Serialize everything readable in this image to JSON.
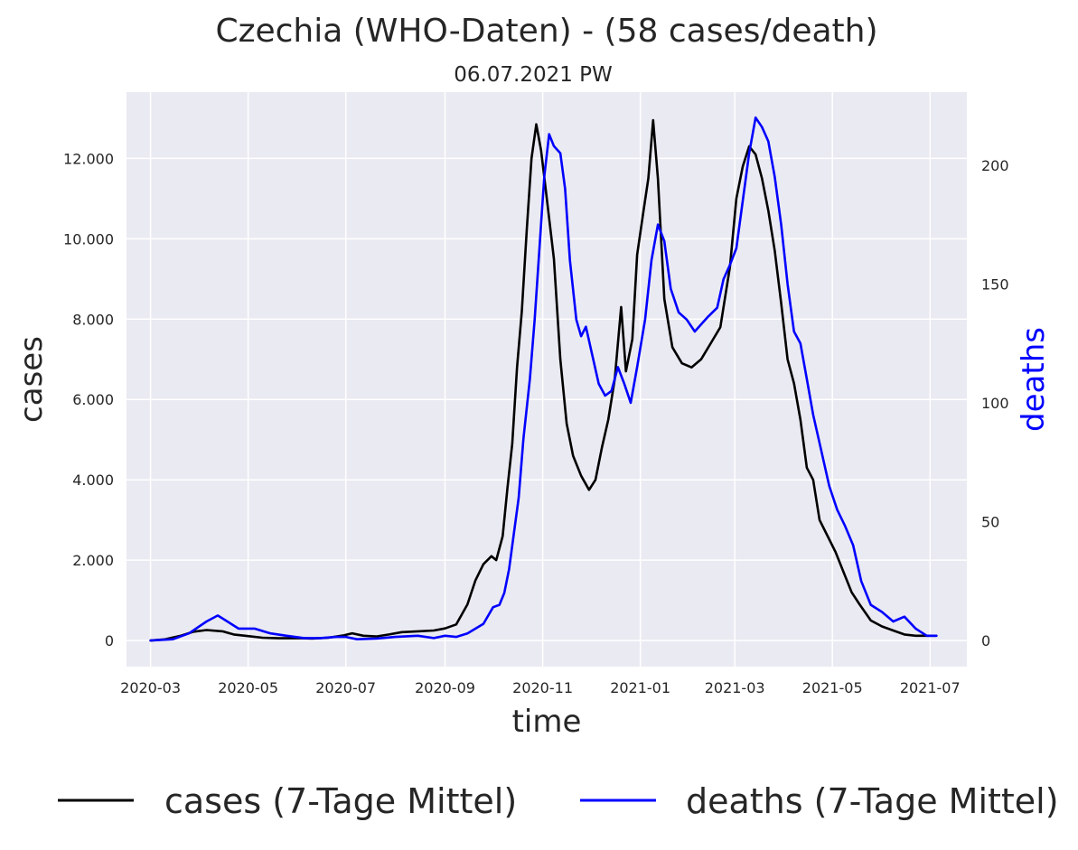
{
  "chart_data": {
    "type": "line",
    "title": "Czechia (WHO-Daten) - (58 cases/death)",
    "subtitle": "06.07.2021 PW",
    "xlabel": "time",
    "ylabel": "cases",
    "y2label": "deaths",
    "x_ticks": [
      "2020-03",
      "2020-05",
      "2020-07",
      "2020-09",
      "2020-11",
      "2021-01",
      "2021-03",
      "2021-05",
      "2021-07"
    ],
    "y_ticks": [
      0,
      2000,
      4000,
      6000,
      8000,
      10000,
      12000
    ],
    "y_tick_labels": [
      "0",
      "2.000",
      "4.000",
      "6.000",
      "8.000",
      "10.000",
      "12.000"
    ],
    "y2_ticks": [
      0,
      50,
      100,
      150,
      200
    ],
    "y2_tick_labels": [
      "0",
      "50",
      "100",
      "150",
      "200"
    ],
    "xlim": [
      "2020-02-15",
      "2021-07-24"
    ],
    "ylim": [
      -650,
      13650
    ],
    "y2lim": [
      -11,
      230.7
    ],
    "grid": true,
    "legend_position": "bottom",
    "series": [
      {
        "name": "cases (7-Tage Mittel)",
        "axis": "left",
        "color": "#000000",
        "points": [
          [
            "2020-03-01",
            0
          ],
          [
            "2020-03-10",
            30
          ],
          [
            "2020-03-20",
            120
          ],
          [
            "2020-03-28",
            220
          ],
          [
            "2020-04-05",
            260
          ],
          [
            "2020-04-15",
            230
          ],
          [
            "2020-04-22",
            150
          ],
          [
            "2020-05-01",
            110
          ],
          [
            "2020-05-10",
            70
          ],
          [
            "2020-05-20",
            55
          ],
          [
            "2020-06-01",
            60
          ],
          [
            "2020-06-10",
            50
          ],
          [
            "2020-06-20",
            70
          ],
          [
            "2020-06-30",
            130
          ],
          [
            "2020-07-05",
            180
          ],
          [
            "2020-07-12",
            120
          ],
          [
            "2020-07-20",
            100
          ],
          [
            "2020-07-28",
            150
          ],
          [
            "2020-08-05",
            210
          ],
          [
            "2020-08-15",
            230
          ],
          [
            "2020-08-25",
            250
          ],
          [
            "2020-09-01",
            300
          ],
          [
            "2020-09-08",
            400
          ],
          [
            "2020-09-15",
            900
          ],
          [
            "2020-09-20",
            1500
          ],
          [
            "2020-09-25",
            1900
          ],
          [
            "2020-09-30",
            2100
          ],
          [
            "2020-10-03",
            2000
          ],
          [
            "2020-10-07",
            2600
          ],
          [
            "2020-10-10",
            3800
          ],
          [
            "2020-10-13",
            4900
          ],
          [
            "2020-10-16",
            6800
          ],
          [
            "2020-10-19",
            8200
          ],
          [
            "2020-10-22",
            10200
          ],
          [
            "2020-10-25",
            12000
          ],
          [
            "2020-10-28",
            12850
          ],
          [
            "2020-10-31",
            12200
          ],
          [
            "2020-11-03",
            11200
          ],
          [
            "2020-11-08",
            9500
          ],
          [
            "2020-11-12",
            7000
          ],
          [
            "2020-11-16",
            5400
          ],
          [
            "2020-11-20",
            4600
          ],
          [
            "2020-11-25",
            4100
          ],
          [
            "2020-11-30",
            3750
          ],
          [
            "2020-12-04",
            4000
          ],
          [
            "2020-12-08",
            4800
          ],
          [
            "2020-12-12",
            5500
          ],
          [
            "2020-12-16",
            6500
          ],
          [
            "2020-12-20",
            8300
          ],
          [
            "2020-12-23",
            6700
          ],
          [
            "2020-12-27",
            7500
          ],
          [
            "2020-12-30",
            9600
          ],
          [
            "2021-01-03",
            10700
          ],
          [
            "2021-01-06",
            11500
          ],
          [
            "2021-01-09",
            12950
          ],
          [
            "2021-01-12",
            11500
          ],
          [
            "2021-01-16",
            8500
          ],
          [
            "2021-01-21",
            7300
          ],
          [
            "2021-01-27",
            6900
          ],
          [
            "2021-02-02",
            6800
          ],
          [
            "2021-02-08",
            7000
          ],
          [
            "2021-02-14",
            7400
          ],
          [
            "2021-02-20",
            7800
          ],
          [
            "2021-02-26",
            9300
          ],
          [
            "2021-03-02",
            11000
          ],
          [
            "2021-03-06",
            11800
          ],
          [
            "2021-03-10",
            12300
          ],
          [
            "2021-03-14",
            12100
          ],
          [
            "2021-03-18",
            11500
          ],
          [
            "2021-03-22",
            10700
          ],
          [
            "2021-03-26",
            9700
          ],
          [
            "2021-03-30",
            8400
          ],
          [
            "2021-04-03",
            7000
          ],
          [
            "2021-04-07",
            6400
          ],
          [
            "2021-04-11",
            5500
          ],
          [
            "2021-04-15",
            4300
          ],
          [
            "2021-04-19",
            4000
          ],
          [
            "2021-04-23",
            3000
          ],
          [
            "2021-04-28",
            2600
          ],
          [
            "2021-05-03",
            2200
          ],
          [
            "2021-05-08",
            1700
          ],
          [
            "2021-05-13",
            1200
          ],
          [
            "2021-05-18",
            900
          ],
          [
            "2021-05-25",
            500
          ],
          [
            "2021-06-01",
            350
          ],
          [
            "2021-06-08",
            250
          ],
          [
            "2021-06-15",
            150
          ],
          [
            "2021-06-22",
            120
          ],
          [
            "2021-06-29",
            120
          ],
          [
            "2021-07-05",
            120
          ]
        ]
      },
      {
        "name": "deaths (7-Tage Mittel)",
        "axis": "right",
        "color": "#0000ff",
        "points": [
          [
            "2020-03-01",
            0
          ],
          [
            "2020-03-15",
            0.5
          ],
          [
            "2020-03-25",
            3
          ],
          [
            "2020-04-05",
            8
          ],
          [
            "2020-04-12",
            10.5
          ],
          [
            "2020-04-18",
            8
          ],
          [
            "2020-04-25",
            5
          ],
          [
            "2020-05-05",
            5
          ],
          [
            "2020-05-15",
            3
          ],
          [
            "2020-05-25",
            2
          ],
          [
            "2020-06-05",
            1
          ],
          [
            "2020-06-15",
            1
          ],
          [
            "2020-06-25",
            1.5
          ],
          [
            "2020-07-01",
            1.5
          ],
          [
            "2020-07-08",
            0.5
          ],
          [
            "2020-07-20",
            0.8
          ],
          [
            "2020-08-01",
            1.5
          ],
          [
            "2020-08-15",
            2
          ],
          [
            "2020-08-25",
            1
          ],
          [
            "2020-09-01",
            2
          ],
          [
            "2020-09-08",
            1.5
          ],
          [
            "2020-09-15",
            3
          ],
          [
            "2020-09-25",
            7
          ],
          [
            "2020-10-01",
            14
          ],
          [
            "2020-10-05",
            15
          ],
          [
            "2020-10-08",
            20
          ],
          [
            "2020-10-11",
            30
          ],
          [
            "2020-10-14",
            45
          ],
          [
            "2020-10-17",
            60
          ],
          [
            "2020-10-20",
            85
          ],
          [
            "2020-10-24",
            110
          ],
          [
            "2020-10-27",
            135
          ],
          [
            "2020-10-30",
            165
          ],
          [
            "2020-11-02",
            195
          ],
          [
            "2020-11-05",
            213
          ],
          [
            "2020-11-08",
            208
          ],
          [
            "2020-11-12",
            205
          ],
          [
            "2020-11-15",
            190
          ],
          [
            "2020-11-18",
            160
          ],
          [
            "2020-11-22",
            135
          ],
          [
            "2020-11-25",
            128
          ],
          [
            "2020-11-28",
            132
          ],
          [
            "2020-12-02",
            120
          ],
          [
            "2020-12-06",
            108
          ],
          [
            "2020-12-10",
            103
          ],
          [
            "2020-12-14",
            105
          ],
          [
            "2020-12-18",
            115
          ],
          [
            "2020-12-22",
            108
          ],
          [
            "2020-12-26",
            100
          ],
          [
            "2020-12-30",
            115
          ],
          [
            "2021-01-04",
            135
          ],
          [
            "2021-01-08",
            160
          ],
          [
            "2021-01-12",
            175
          ],
          [
            "2021-01-16",
            168
          ],
          [
            "2021-01-20",
            148
          ],
          [
            "2021-01-25",
            138
          ],
          [
            "2021-01-30",
            135
          ],
          [
            "2021-02-04",
            130
          ],
          [
            "2021-02-08",
            133
          ],
          [
            "2021-02-12",
            136
          ],
          [
            "2021-02-18",
            140
          ],
          [
            "2021-02-22",
            152
          ],
          [
            "2021-02-26",
            158
          ],
          [
            "2021-03-02",
            165
          ],
          [
            "2021-03-06",
            185
          ],
          [
            "2021-03-10",
            205
          ],
          [
            "2021-03-14",
            220
          ],
          [
            "2021-03-18",
            216
          ],
          [
            "2021-03-22",
            210
          ],
          [
            "2021-03-26",
            195
          ],
          [
            "2021-03-30",
            175
          ],
          [
            "2021-04-03",
            150
          ],
          [
            "2021-04-07",
            130
          ],
          [
            "2021-04-11",
            125
          ],
          [
            "2021-04-15",
            110
          ],
          [
            "2021-04-19",
            95
          ],
          [
            "2021-04-24",
            80
          ],
          [
            "2021-04-29",
            65
          ],
          [
            "2021-05-04",
            55
          ],
          [
            "2021-05-09",
            48
          ],
          [
            "2021-05-14",
            40
          ],
          [
            "2021-05-19",
            25
          ],
          [
            "2021-05-25",
            15
          ],
          [
            "2021-06-01",
            12
          ],
          [
            "2021-06-08",
            8
          ],
          [
            "2021-06-15",
            10
          ],
          [
            "2021-06-22",
            5
          ],
          [
            "2021-06-29",
            2
          ],
          [
            "2021-07-05",
            2
          ]
        ]
      }
    ]
  },
  "colors": {
    "plot_background": "#eaeaf2",
    "grid": "#ffffff",
    "text": "#262626",
    "deaths_axis_label": "#0000ff"
  }
}
